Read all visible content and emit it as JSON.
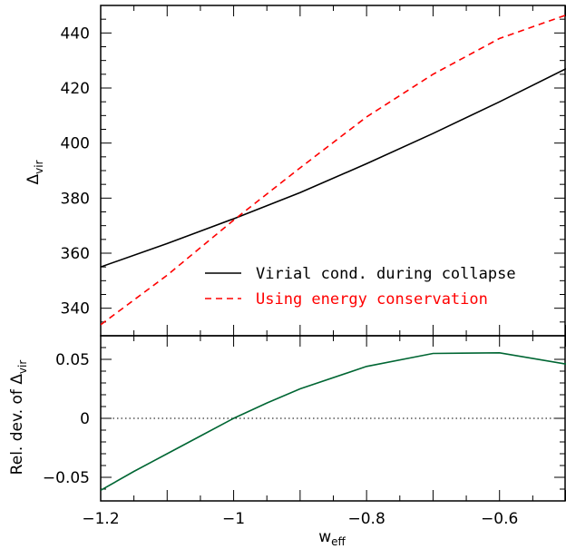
{
  "chart_data": [
    {
      "type": "line",
      "panel": "top",
      "ylabel": "Δ",
      "ylabel_sub": "vir",
      "xlim": [
        -1.2,
        -0.5
      ],
      "ylim": [
        330,
        450
      ],
      "yticks": [
        340,
        360,
        380,
        400,
        420,
        440
      ],
      "ytick_labels": [
        "340",
        "360",
        "380",
        "400",
        "420",
        "440"
      ],
      "legend_position": "bottom-right",
      "series": [
        {
          "name": "Virial cond. during collapse",
          "color": "#000000",
          "style": "solid",
          "x": [
            -1.2,
            -1.1,
            -1.0,
            -0.9,
            -0.8,
            -0.7,
            -0.6,
            -0.5
          ],
          "y": [
            355,
            363.5,
            372.5,
            382,
            392.5,
            403.5,
            415,
            427
          ]
        },
        {
          "name": "Using energy conservation",
          "color": "#ff0000",
          "style": "dashed",
          "x": [
            -1.2,
            -1.1,
            -1.0,
            -0.9,
            -0.8,
            -0.7,
            -0.6,
            -0.5
          ],
          "y": [
            334,
            352,
            372,
            391,
            409.5,
            425,
            438,
            446.5
          ]
        }
      ]
    },
    {
      "type": "line",
      "panel": "bottom",
      "ylabel": "Rel. dev. of Δ",
      "ylabel_sub": "vir",
      "xlabel": "w",
      "xlabel_sub": "eff",
      "xlim": [
        -1.2,
        -0.5
      ],
      "ylim": [
        -0.07,
        0.07
      ],
      "xticks": [
        -1.2,
        -1.0,
        -0.8,
        -0.6
      ],
      "xtick_labels": [
        "−1.2",
        "−1",
        "−0.8",
        "−0.6"
      ],
      "yticks": [
        -0.05,
        0,
        0.05
      ],
      "ytick_labels": [
        "−0.05",
        "0",
        "0.05"
      ],
      "reference_line": 0,
      "series": [
        {
          "color": "#006633",
          "style": "solid",
          "x": [
            -1.2,
            -1.15,
            -1.1,
            -1.05,
            -1.0,
            -0.95,
            -0.9,
            -0.8,
            -0.7,
            -0.6,
            -0.5
          ],
          "y": [
            -0.061,
            -0.045,
            -0.03,
            -0.015,
            0.0,
            0.013,
            0.025,
            0.044,
            0.055,
            0.0555,
            0.046
          ]
        }
      ]
    }
  ]
}
